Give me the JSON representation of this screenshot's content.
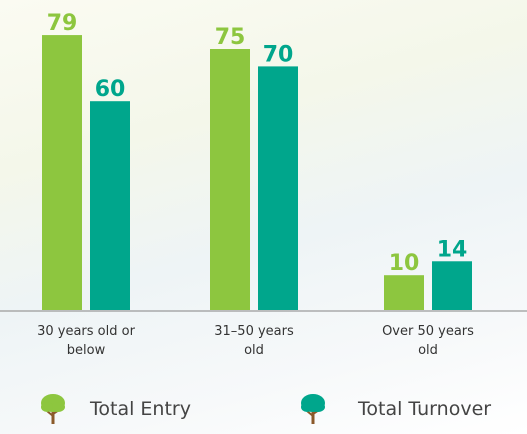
{
  "chart_data": {
    "type": "bar",
    "categories": [
      "30 years old or below",
      "31–50 years old",
      "Over 50 years old"
    ],
    "series": [
      {
        "name": "Total Entry",
        "color": "#8dc63f",
        "values": [
          79,
          75,
          10
        ]
      },
      {
        "name": "Total Turnover",
        "color": "#00a68c",
        "values": [
          60,
          70,
          14
        ]
      }
    ]
  }
}
